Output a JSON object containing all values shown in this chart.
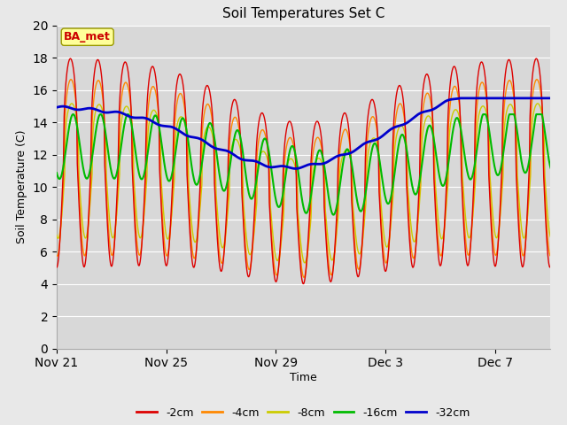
{
  "title": "Soil Temperatures Set C",
  "xlabel": "Time",
  "ylabel": "Soil Temperature (C)",
  "ylim": [
    0,
    20
  ],
  "yticks": [
    0,
    2,
    4,
    6,
    8,
    10,
    12,
    14,
    16,
    18,
    20
  ],
  "xtick_labels": [
    "Nov 21",
    "Nov 25",
    "Nov 29",
    "Dec 3",
    "Dec 7"
  ],
  "xtick_positions": [
    0,
    4,
    8,
    12,
    16
  ],
  "total_days": 18,
  "annotation_text": "BA_met",
  "annotation_color": "#cc0000",
  "annotation_bg": "#ffff99",
  "bg_color": "#e8e8e8",
  "plot_bg": "#d8d8d8",
  "colors": {
    "-2cm": "#dd0000",
    "-4cm": "#ff8800",
    "-8cm": "#cccc00",
    "-16cm": "#00bb00",
    "-32cm": "#0000cc"
  },
  "legend_labels": [
    "-2cm",
    "-4cm",
    "-8cm",
    "-16cm",
    "-32cm"
  ]
}
